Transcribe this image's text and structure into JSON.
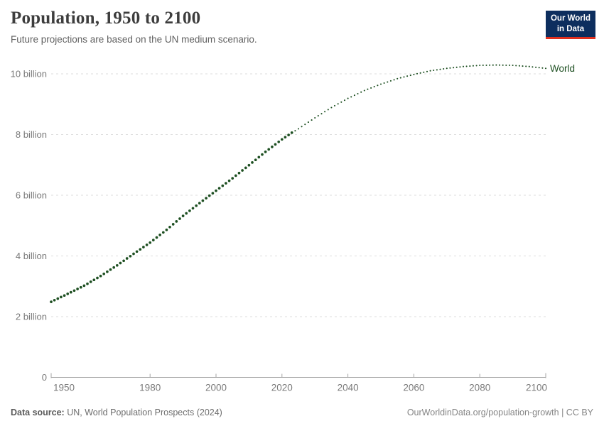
{
  "header": {
    "title": "Population, 1950 to 2100",
    "subtitle": "Future projections are based on the UN medium scenario.",
    "logo": {
      "line1": "Our World",
      "line2": "in Data"
    }
  },
  "chart_data": {
    "type": "line",
    "title": "Population, 1950 to 2100",
    "unit": "billion people",
    "x": [
      1950,
      1955,
      1960,
      1965,
      1970,
      1975,
      1980,
      1985,
      1990,
      1995,
      2000,
      2005,
      2010,
      2015,
      2020,
      2023,
      2025,
      2030,
      2035,
      2040,
      2045,
      2050,
      2055,
      2060,
      2065,
      2070,
      2075,
      2080,
      2085,
      2090,
      2095,
      2100
    ],
    "series": [
      {
        "name": "World",
        "values": [
          2.49,
          2.75,
          3.02,
          3.34,
          3.69,
          4.07,
          4.44,
          4.86,
          5.32,
          5.74,
          6.15,
          6.56,
          6.99,
          7.43,
          7.84,
          8.06,
          8.19,
          8.55,
          8.89,
          9.19,
          9.45,
          9.66,
          9.84,
          9.98,
          10.1,
          10.18,
          10.24,
          10.28,
          10.29,
          10.28,
          10.24,
          10.18
        ],
        "historical_until": 2023,
        "projection_style": "dotted",
        "color": "#1d4f21"
      }
    ],
    "xlim": [
      1950,
      2100
    ],
    "ylim": [
      0,
      10.6
    ],
    "xticks": [
      1950,
      1980,
      2000,
      2020,
      2040,
      2060,
      2080,
      2100
    ],
    "ytick_values": [
      0,
      2,
      4,
      6,
      8,
      10
    ],
    "ytick_labels": [
      "0",
      "2 billion",
      "4 billion",
      "6 billion",
      "8 billion",
      "10 billion"
    ],
    "grid": "dashed-horizontal",
    "legend_label": "World",
    "legend_position": "end-of-line"
  },
  "colors": {
    "line": "#1d4f21",
    "grid": "#dedede",
    "axis": "#a5a5a5",
    "tick_text": "#7a7a7a",
    "logo_bg": "#0d2e5e",
    "logo_stripe": "#e0301e"
  },
  "footer": {
    "source_label": "Data source:",
    "source_text": "UN, World Population Prospects (2024)",
    "link_text": "OurWorldinData.org/population-growth | CC BY"
  }
}
